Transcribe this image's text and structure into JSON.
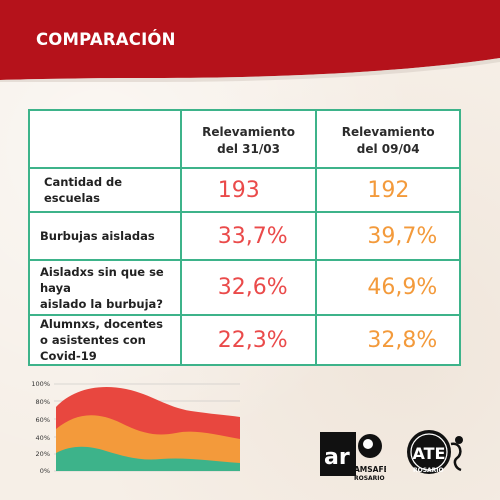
{
  "header": {
    "title": "COMPARACIÓN"
  },
  "table": {
    "columns": [
      "",
      "Relevamiento del 31/03",
      "Relevamiento del 09/04"
    ],
    "col1_line1": "Relevamiento",
    "col1_line2": "del 31/03",
    "col2_line1": "Relevamiento",
    "col2_line2": "del 09/04",
    "rows": [
      {
        "label": "Cantidad de escuelas",
        "v1": "193",
        "v2": "192"
      },
      {
        "label": "Burbujas aisladas",
        "v1": "33,7%",
        "v2": "39,7%"
      },
      {
        "label_line1": "Aisladxs sin que se haya",
        "label_line2": "aislado la burbuja?",
        "v1": "32,6%",
        "v2": "46,9%"
      },
      {
        "label_line1": "Alumnxs, docentes",
        "label_line2": "o asistentes con Covid-19",
        "v1": "22,3%",
        "v2": "32,8%"
      }
    ]
  },
  "decor_chart": {
    "ticks": [
      "100%",
      "80%",
      "60%",
      "40%",
      "20%",
      "0%"
    ]
  },
  "logos": {
    "amsafe_mark": "ar",
    "amsafe_line1": "AMSAFE",
    "amsafe_line2": "ROSARIO",
    "atf_mark": "ATE",
    "atf_sub": "ROSARIO"
  },
  "colors": {
    "header_red": "#b5121b",
    "table_border": "#3db38a",
    "value_red": "#ea4a4a",
    "value_orange": "#f39a3b",
    "chart_red": "#e8473f",
    "chart_orange": "#f39a3b",
    "chart_green": "#3db38a"
  }
}
